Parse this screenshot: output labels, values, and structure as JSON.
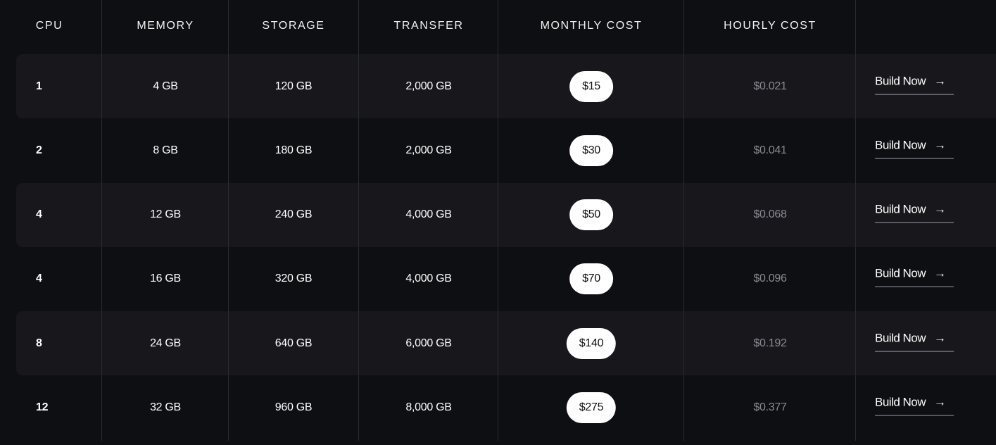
{
  "headers": {
    "cpu": "CPU",
    "memory": "MEMORY",
    "storage": "STORAGE",
    "transfer": "TRANSFER",
    "monthly": "MONTHLY COST",
    "hourly": "HOURLY COST"
  },
  "build_label": "Build Now",
  "arrow_icon": "→",
  "rows": [
    {
      "cpu": "1",
      "memory": "4 GB",
      "storage": "120 GB",
      "transfer": "2,000 GB",
      "monthly": "$15",
      "hourly": "$0.021"
    },
    {
      "cpu": "2",
      "memory": "8 GB",
      "storage": "180 GB",
      "transfer": "2,000 GB",
      "monthly": "$30",
      "hourly": "$0.041"
    },
    {
      "cpu": "4",
      "memory": "12 GB",
      "storage": "240 GB",
      "transfer": "4,000 GB",
      "monthly": "$50",
      "hourly": "$0.068"
    },
    {
      "cpu": "4",
      "memory": "16 GB",
      "storage": "320 GB",
      "transfer": "4,000 GB",
      "monthly": "$70",
      "hourly": "$0.096"
    },
    {
      "cpu": "8",
      "memory": "24 GB",
      "storage": "640 GB",
      "transfer": "6,000 GB",
      "monthly": "$140",
      "hourly": "$0.192"
    },
    {
      "cpu": "12",
      "memory": "32 GB",
      "storage": "960 GB",
      "transfer": "8,000 GB",
      "monthly": "$275",
      "hourly": "$0.377"
    }
  ]
}
